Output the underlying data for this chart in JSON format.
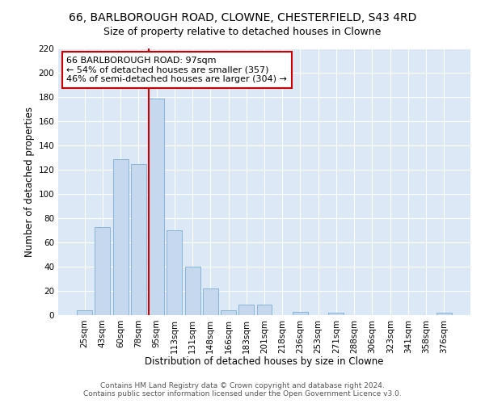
{
  "title1": "66, BARLBOROUGH ROAD, CLOWNE, CHESTERFIELD, S43 4RD",
  "title2": "Size of property relative to detached houses in Clowne",
  "xlabel": "Distribution of detached houses by size in Clowne",
  "ylabel": "Number of detached properties",
  "bar_labels": [
    "25sqm",
    "43sqm",
    "60sqm",
    "78sqm",
    "95sqm",
    "113sqm",
    "131sqm",
    "148sqm",
    "166sqm",
    "183sqm",
    "201sqm",
    "218sqm",
    "236sqm",
    "253sqm",
    "271sqm",
    "288sqm",
    "306sqm",
    "323sqm",
    "341sqm",
    "358sqm",
    "376sqm"
  ],
  "bar_values": [
    4,
    73,
    129,
    125,
    179,
    70,
    40,
    22,
    4,
    9,
    9,
    0,
    3,
    0,
    2,
    0,
    0,
    0,
    0,
    0,
    2
  ],
  "bar_color": "#c5d8ed",
  "bar_edge_color": "#7aafd4",
  "vline_color": "#cc0000",
  "annotation_text": "66 BARLBOROUGH ROAD: 97sqm\n← 54% of detached houses are smaller (357)\n46% of semi-detached houses are larger (304) →",
  "annotation_box_color": "#ffffff",
  "annotation_box_edge": "#cc0000",
  "bg_color": "#dce8f5",
  "fig_bg": "#ffffff",
  "ylim": [
    0,
    220
  ],
  "yticks": [
    0,
    20,
    40,
    60,
    80,
    100,
    120,
    140,
    160,
    180,
    200,
    220
  ],
  "footer1": "Contains HM Land Registry data © Crown copyright and database right 2024.",
  "footer2": "Contains public sector information licensed under the Open Government Licence v3.0.",
  "title1_fontsize": 10,
  "title2_fontsize": 9,
  "axis_fontsize": 8.5,
  "tick_fontsize": 7.5,
  "annotation_fontsize": 8,
  "footer_fontsize": 6.5
}
